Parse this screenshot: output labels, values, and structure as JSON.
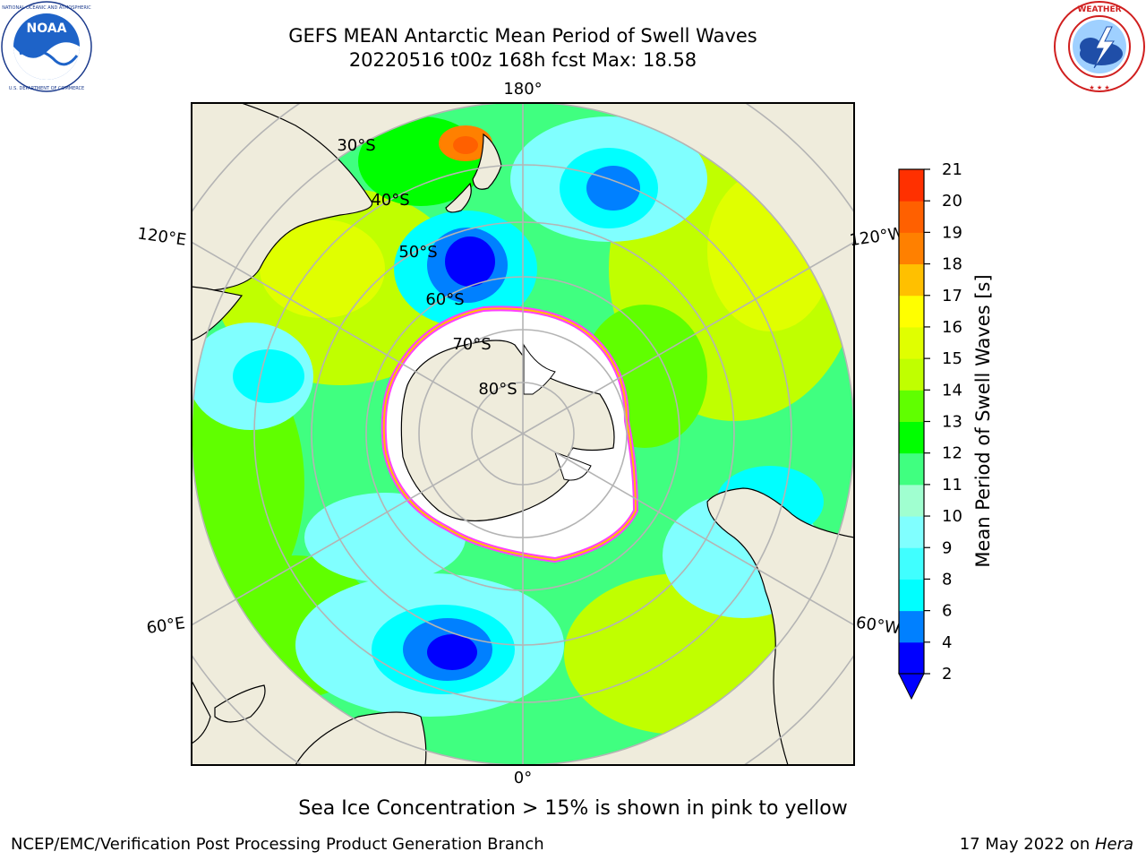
{
  "title": {
    "line1": "GEFS MEAN Antarctic Mean Period of Swell Waves",
    "line2": "20220516 t00z 168h fcst   Max: 18.58"
  },
  "logos": {
    "left": {
      "name": "noaa-logo",
      "text": "NOAA",
      "ring_text": "NATIONAL OCEANIC AND ATMOSPHERIC ADMINISTRATION · U.S. DEPARTMENT OF COMMERCE"
    },
    "right": {
      "name": "nws-logo",
      "ring_text": "NATIONAL WEATHER SERVICE"
    }
  },
  "map": {
    "projection": "south-polar-stereographic",
    "longitude_labels": {
      "top": "180°",
      "bottom": "0°",
      "upper_left": "120°E",
      "upper_right": "120°W",
      "lower_left": "60°E",
      "lower_right": "60°W"
    },
    "latitude_labels": [
      "30°S",
      "40°S",
      "50°S",
      "60°S",
      "70°S",
      "80°S"
    ]
  },
  "colorbar": {
    "label": "Mean Period of Swell Waves [s]",
    "ticks": [
      "2",
      "4",
      "6",
      "8",
      "9",
      "10",
      "11",
      "12",
      "13",
      "14",
      "15",
      "16",
      "17",
      "18",
      "19",
      "20",
      "21"
    ],
    "colors": [
      "#0000ff",
      "#0080ff",
      "#00ffff",
      "#40ffff",
      "#80ffff",
      "#a0ffd0",
      "#40ff80",
      "#00ff00",
      "#60ff00",
      "#c0ff00",
      "#e0ff00",
      "#ffff00",
      "#ffc000",
      "#ff8000",
      "#ff6000",
      "#ff3000",
      "#ff0000"
    ],
    "extend_color": "#0000ff"
  },
  "sea_ice_note": "Sea Ice Concentration > 15% is shown in pink to yellow",
  "footer": {
    "left": "NCEP/EMC/Verification Post Processing Product Generation Branch",
    "right_date": "17 May 2022 on ",
    "right_host": "Hera"
  },
  "colors": {
    "land": "#efecdc",
    "ice_edge": "#ff40ff",
    "ice_inner": "#ffffff"
  }
}
